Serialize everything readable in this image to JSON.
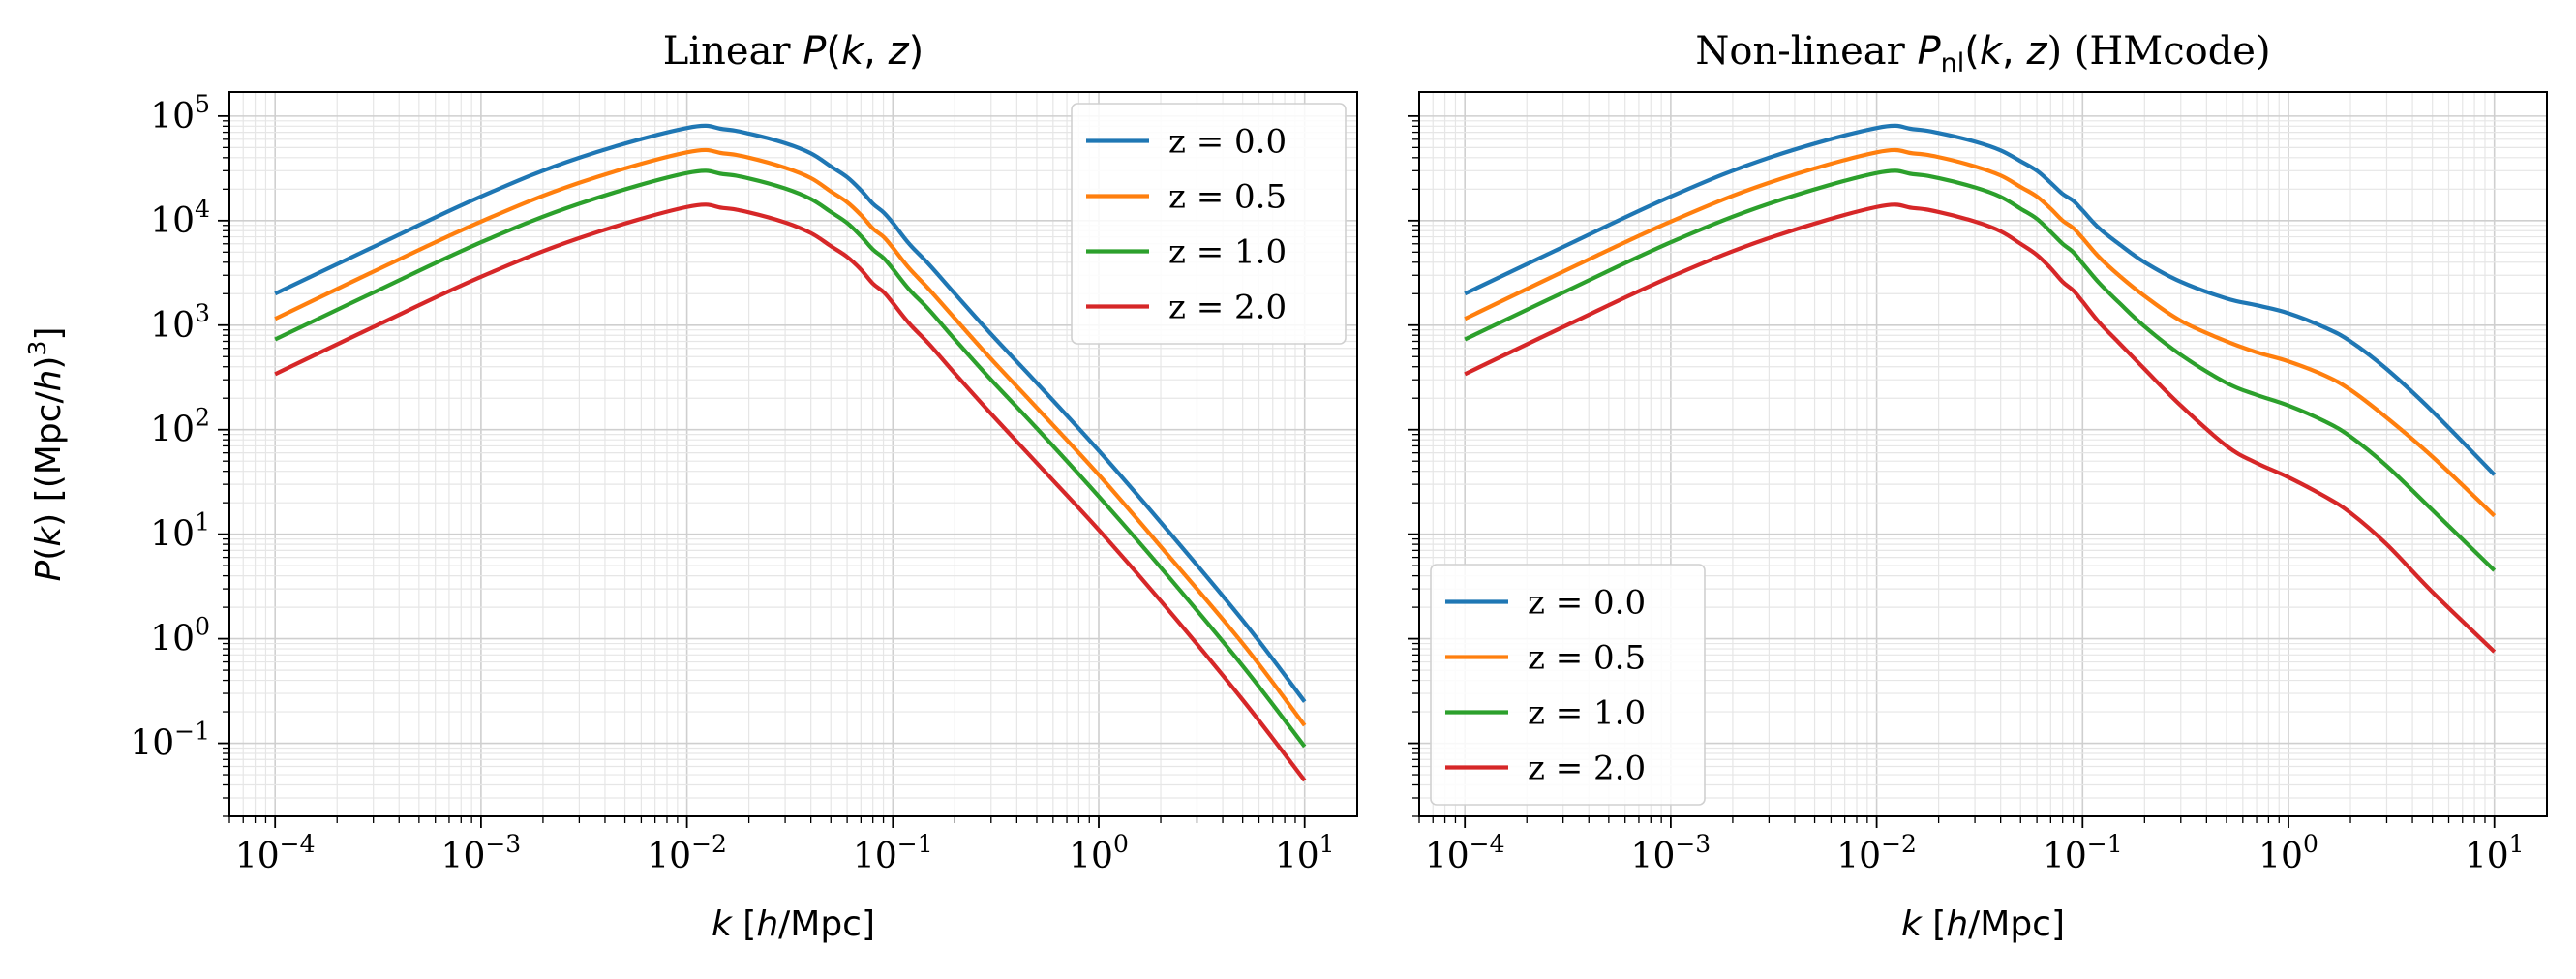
{
  "chart_data": [
    {
      "type": "line",
      "title": "Linear P(k, z)",
      "title_parts": [
        "Linear ",
        "P",
        "(",
        "k",
        ", ",
        "z",
        ")"
      ],
      "xlabel": "k [h/Mpc]",
      "ylabel": "P(k) [(Mpc/h)³]",
      "xscale": "log",
      "yscale": "log",
      "xlim": [
        6e-05,
        18
      ],
      "ylim": [
        0.02,
        170000
      ],
      "xticks": [
        0.0001,
        0.001,
        0.01,
        0.1,
        1,
        10
      ],
      "xtick_labels": [
        [
          "10",
          "−4"
        ],
        [
          "10",
          "−3"
        ],
        [
          "10",
          "−2"
        ],
        [
          "10",
          "−1"
        ],
        [
          "10",
          "0"
        ],
        [
          "10",
          "1"
        ]
      ],
      "yticks": [
        0.1,
        1,
        10,
        100,
        1000,
        10000,
        100000
      ],
      "ytick_labels": [
        [
          "10",
          "−1"
        ],
        [
          "10",
          "0"
        ],
        [
          "10",
          "1"
        ],
        [
          "10",
          "2"
        ],
        [
          "10",
          "3"
        ],
        [
          "10",
          "4"
        ],
        [
          "10",
          "5"
        ]
      ],
      "grid": true,
      "legend_position": "top-right",
      "x": [
        0.0001,
        0.0003,
        0.001,
        0.003,
        0.01,
        0.015,
        0.02,
        0.03,
        0.04,
        0.05,
        0.06,
        0.07,
        0.08,
        0.09,
        0.1,
        0.12,
        0.15,
        0.2,
        0.3,
        0.5,
        1,
        2,
        5,
        10
      ],
      "series": [
        {
          "name": "z = 0.0",
          "color": "#1f77b4",
          "values": [
            2000,
            5600,
            17000,
            40000,
            77000,
            75000,
            68000,
            55000,
            44000,
            33000,
            26000,
            19500,
            14500,
            12000,
            9500,
            6000,
            3800,
            2000,
            820,
            280,
            63,
            13,
            1.5,
            0.25
          ]
        },
        {
          "name": "z = 0.5",
          "color": "#ff7f0e",
          "values": [
            1150,
            3250,
            9800,
            23000,
            45000,
            44000,
            40000,
            32000,
            25500,
            19000,
            15000,
            11300,
            8400,
            7000,
            5500,
            3500,
            2200,
            1160,
            475,
            162,
            37,
            7.6,
            0.9,
            0.148
          ]
        },
        {
          "name": "z = 1.0",
          "color": "#2ca02c",
          "values": [
            730,
            2050,
            6200,
            14500,
            28500,
            27800,
            25300,
            20300,
            16100,
            12100,
            9500,
            7100,
            5300,
            4400,
            3450,
            2200,
            1400,
            730,
            300,
            103,
            23,
            4.8,
            0.55,
            0.093
          ]
        },
        {
          "name": "z = 2.0",
          "color": "#d62728",
          "values": [
            340,
            960,
            2900,
            6800,
            13500,
            13200,
            12000,
            9600,
            7600,
            5700,
            4500,
            3400,
            2500,
            2080,
            1630,
            1040,
            660,
            345,
            142,
            48,
            11,
            2.3,
            0.26,
            0.044
          ]
        }
      ]
    },
    {
      "type": "line",
      "title": "Non-linear P_nl(k, z) (HMcode)",
      "title_parts": [
        "Non-linear ",
        "P",
        "nl",
        "(",
        "k",
        ", ",
        "z",
        ") (HMcode)"
      ],
      "xlabel": "k [h/Mpc]",
      "ylabel": "",
      "xscale": "log",
      "yscale": "log",
      "xlim": [
        6e-05,
        18
      ],
      "ylim": [
        0.02,
        170000
      ],
      "xticks": [
        0.0001,
        0.001,
        0.01,
        0.1,
        1,
        10
      ],
      "xtick_labels": [
        [
          "10",
          "−4"
        ],
        [
          "10",
          "−3"
        ],
        [
          "10",
          "−2"
        ],
        [
          "10",
          "−1"
        ],
        [
          "10",
          "0"
        ],
        [
          "10",
          "1"
        ]
      ],
      "yticks": [
        0.1,
        1,
        10,
        100,
        1000,
        10000,
        100000
      ],
      "ytick_labels": [],
      "grid": true,
      "legend_position": "bottom-left",
      "x": [
        0.0001,
        0.0003,
        0.001,
        0.003,
        0.01,
        0.015,
        0.02,
        0.03,
        0.04,
        0.05,
        0.06,
        0.07,
        0.08,
        0.09,
        0.1,
        0.12,
        0.15,
        0.2,
        0.3,
        0.5,
        0.7,
        1,
        1.5,
        2,
        3,
        5,
        10
      ],
      "series": [
        {
          "name": "z = 0.0",
          "color": "#1f77b4",
          "values": [
            2000,
            5600,
            17000,
            40000,
            77000,
            75000,
            69000,
            57000,
            47000,
            37000,
            30000,
            23000,
            18000,
            15500,
            12500,
            8500,
            6000,
            4000,
            2600,
            1800,
            1550,
            1300,
            950,
            700,
            380,
            150,
            37
          ]
        },
        {
          "name": "z = 0.5",
          "color": "#ff7f0e",
          "values": [
            1150,
            3250,
            9800,
            23000,
            45000,
            44000,
            40500,
            33000,
            27000,
            21000,
            17000,
            13000,
            10000,
            8500,
            6800,
            4500,
            3000,
            1900,
            1100,
            700,
            550,
            450,
            330,
            240,
            130,
            55,
            15
          ]
        },
        {
          "name": "z = 1.0",
          "color": "#2ca02c",
          "values": [
            730,
            2050,
            6200,
            14500,
            28500,
            27800,
            25500,
            20800,
            16900,
            13000,
            10400,
            7800,
            6000,
            5000,
            3900,
            2550,
            1650,
            970,
            520,
            280,
            215,
            170,
            120,
            86,
            45,
            17,
            4.5
          ]
        },
        {
          "name": "z = 2.0",
          "color": "#d62728",
          "values": [
            340,
            960,
            2900,
            6800,
            13500,
            13200,
            12100,
            9800,
            7900,
            6000,
            4700,
            3500,
            2600,
            2150,
            1680,
            1070,
            680,
            380,
            170,
            70,
            48,
            35,
            23,
            16,
            8,
            2.8,
            0.75
          ]
        }
      ]
    }
  ]
}
